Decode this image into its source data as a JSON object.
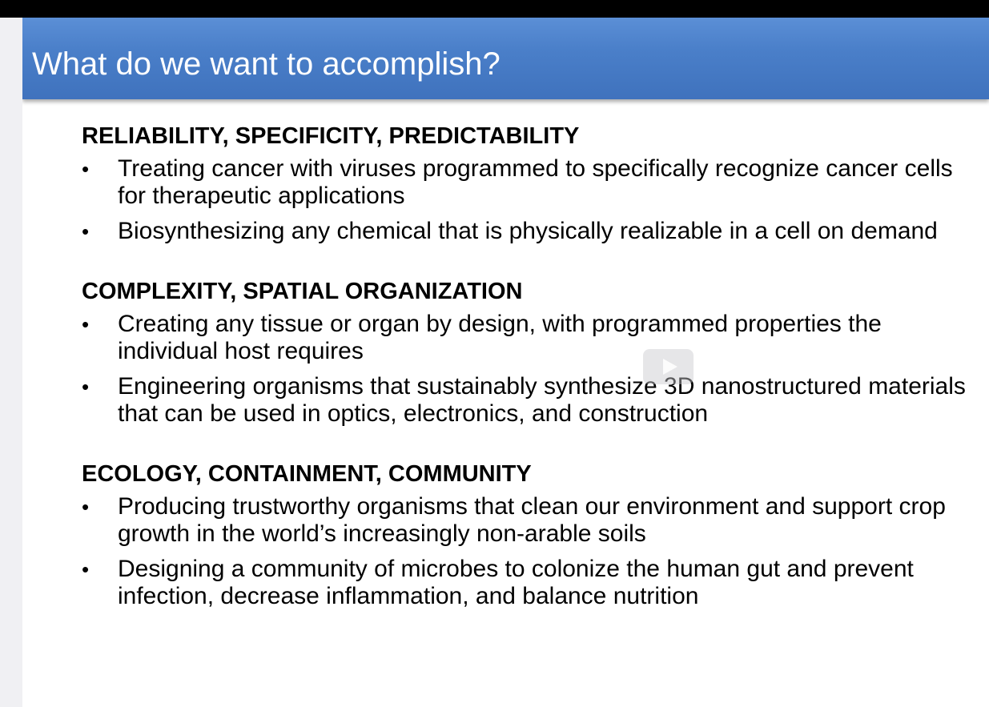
{
  "slide": {
    "title": "What do we want to accomplish?",
    "sections": [
      {
        "heading": "RELIABILITY, SPECIFICITY, PREDICTABILITY",
        "bullets": [
          "Treating cancer with viruses programmed to specifically recognize cancer cells for therapeutic applications",
          "Biosynthesizing any chemical that is physically realizable in a cell on demand"
        ]
      },
      {
        "heading": "COMPLEXITY, SPATIAL ORGANIZATION",
        "bullets": [
          "Creating any tissue or organ by design, with programmed properties the individual host requires",
          "Engineering organisms that sustainably synthesize 3D nanostructured materials that can be used in optics, electronics, and construction"
        ]
      },
      {
        "heading": "ECOLOGY, CONTAINMENT, COMMUNITY",
        "bullets": [
          "Producing trustworthy organisms that clean our environment and support crop growth in the world’s increasingly non-arable soils",
          "Designing a community of microbes to colonize the human gut and prevent infection, decrease inflammation, and balance nutrition"
        ]
      }
    ]
  },
  "icons": {
    "bullet": "•",
    "play": "play-icon"
  },
  "colors": {
    "title_bar": "#4a7fc9",
    "title_text": "#ffffff",
    "body_text": "#000000"
  }
}
